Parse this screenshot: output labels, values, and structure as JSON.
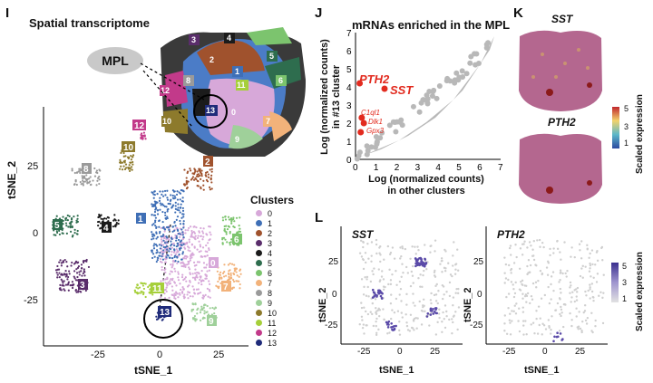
{
  "panels": {
    "I": {
      "letter": "I",
      "title": "Spatial transcriptome",
      "mpl_label": "MPL",
      "xlabel": "tSNE_1",
      "ylabel": "tSNE_2",
      "xticks": [
        "-25",
        "0",
        "25"
      ],
      "yticks": [
        "25",
        "0",
        "-25"
      ],
      "legend_title": "Clusters",
      "clusters": [
        {
          "id": "0",
          "color": "#d7a8d9"
        },
        {
          "id": "1",
          "color": "#3f6fb6"
        },
        {
          "id": "2",
          "color": "#a0522d"
        },
        {
          "id": "3",
          "color": "#5a2d6b"
        },
        {
          "id": "4",
          "color": "#1b1b1b"
        },
        {
          "id": "5",
          "color": "#2e6d4e"
        },
        {
          "id": "6",
          "color": "#7cc46e"
        },
        {
          "id": "7",
          "color": "#f2b27a"
        },
        {
          "id": "8",
          "color": "#9a9a9a"
        },
        {
          "id": "9",
          "color": "#9fd09a"
        },
        {
          "id": "10",
          "color": "#8d7a2c"
        },
        {
          "id": "11",
          "color": "#a6cf3a"
        },
        {
          "id": "12",
          "color": "#c23a8a"
        },
        {
          "id": "13",
          "color": "#1f2b7a"
        }
      ]
    },
    "J": {
      "letter": "J",
      "title": "mRNAs enriched in the MPL",
      "ylabel_line1": "Log (normalized counts)",
      "ylabel_line2": "in #13 cluster",
      "xlabel_line1": "Log (normalized counts)",
      "xlabel_line2": "in other clusters",
      "xticks": [
        "0",
        "1",
        "2",
        "3",
        "4",
        "5",
        "6",
        "7"
      ],
      "yticks": [
        "0",
        "1",
        "2",
        "3",
        "4",
        "5",
        "6",
        "7"
      ],
      "gene_pth2": "PTH2",
      "gene_sst": "SST",
      "gene_c1ql1": "C1ql1",
      "gene_dlk1": "Dlk1",
      "gene_gpx3": "Gpx3"
    },
    "K": {
      "letter": "K",
      "gene1": "SST",
      "gene2": "PTH2",
      "scale_label": "Scaled expression",
      "scale_ticks": [
        "5",
        "3",
        "1"
      ]
    },
    "L": {
      "letter": "L",
      "gene1": "SST",
      "gene2": "PTH2",
      "xlabel": "tSNE_1",
      "ylabel": "tSNE_2",
      "xticks": [
        "-25",
        "0",
        "25"
      ],
      "yticks": [
        "25",
        "0",
        "-25"
      ],
      "scale_label": "Scaled expression",
      "scale_ticks": [
        "5",
        "3",
        "1"
      ]
    }
  },
  "chart_data": [
    {
      "type": "scatter",
      "title": "mRNAs enriched in the MPL",
      "xlabel": "Log (normalized counts) in other clusters",
      "ylabel": "Log (normalized counts) in #13 cluster",
      "xlim": [
        0,
        7
      ],
      "ylim": [
        0,
        7
      ],
      "highlighted": [
        {
          "label": "PTH2",
          "x": 0.2,
          "y": 4.2
        },
        {
          "label": "SST",
          "x": 1.4,
          "y": 3.9
        },
        {
          "label": "C1ql1",
          "x": 0.3,
          "y": 2.3
        },
        {
          "label": "Dlk1",
          "x": 0.4,
          "y": 2.0
        },
        {
          "label": "Gpx3",
          "x": 0.25,
          "y": 1.5
        }
      ]
    }
  ]
}
